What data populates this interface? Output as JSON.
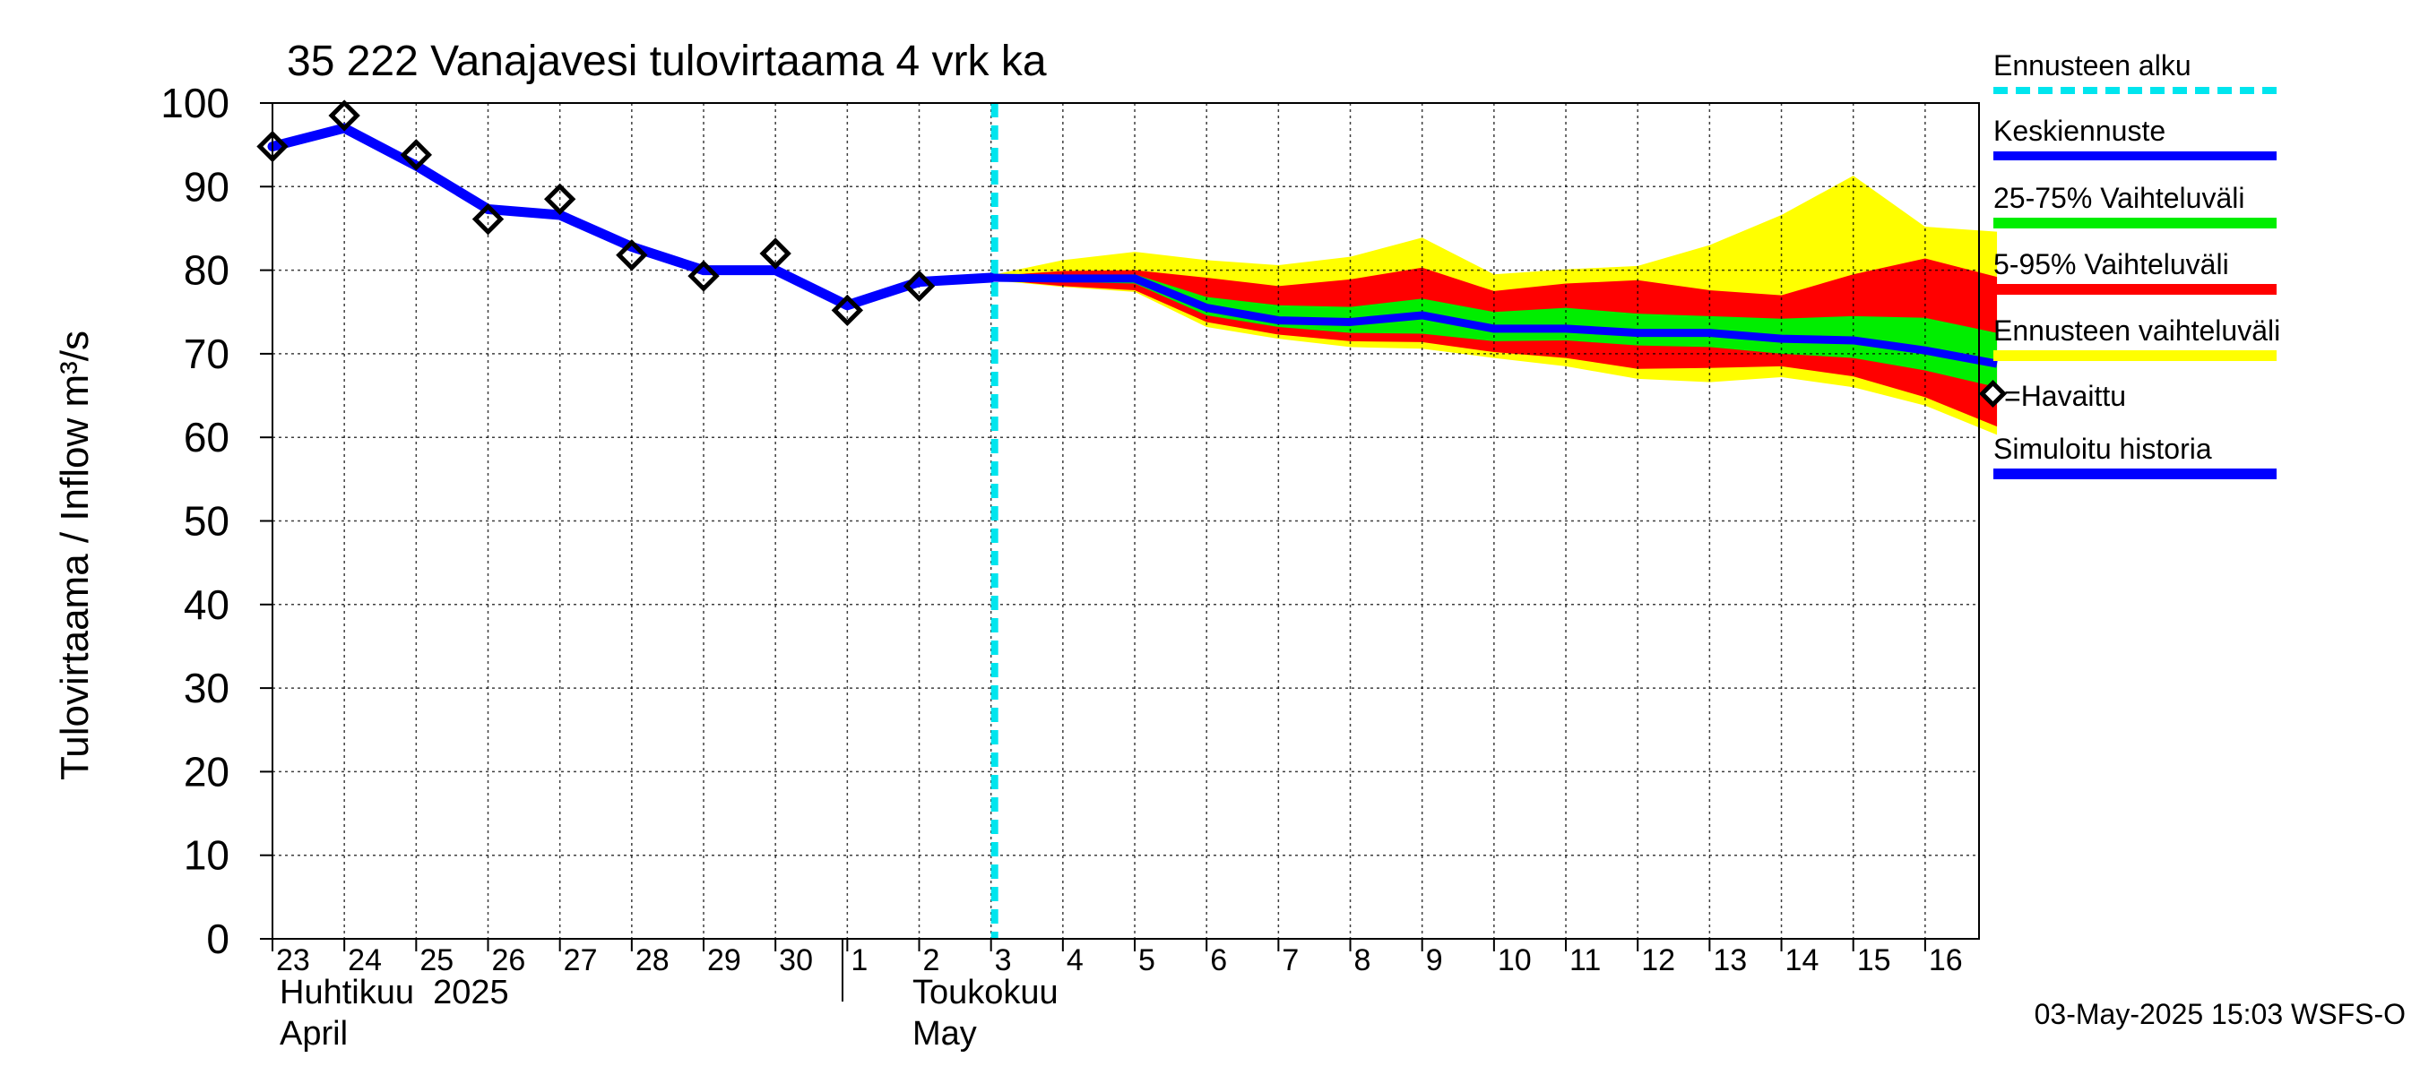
{
  "chart_data": {
    "type": "area",
    "title": "35 222 Vanajavesi tulovirtaama 4 vrk ka",
    "ylabel": "Tulovirtaama / Inflow    m³/s",
    "ylim": [
      0,
      100
    ],
    "yticks": [
      0,
      10,
      20,
      30,
      40,
      50,
      60,
      70,
      80,
      90,
      100
    ],
    "x_labels": [
      "23",
      "24",
      "25",
      "26",
      "27",
      "28",
      "29",
      "30",
      "1",
      "2",
      "3",
      "4",
      "5",
      "6",
      "7",
      "8",
      "9",
      "10",
      "11",
      "12",
      "13",
      "14",
      "15",
      "16"
    ],
    "month_labels": [
      {
        "fi": "Huhtikuu  2025",
        "en": "April",
        "start_index": 0
      },
      {
        "fi": "Toukokuu",
        "en": "May",
        "start_index": 9
      }
    ],
    "forecast_start": 10.05,
    "grid": true,
    "legend_position": "right",
    "legend": {
      "forecast_start": "Ennusteen alku",
      "mean": "Keskiennuste",
      "p25_75": "25-75% Vaihteluväli",
      "p5_95": "5-95% Vaihteluväli",
      "range": "Ennusteen vaihteluväli",
      "observed": "=Havaittu",
      "simulated": "Simuloitu historia"
    },
    "colors": {
      "forecast_start": "#00e5ee",
      "mean": "#0000ff",
      "p25_75": "#00ee00",
      "p5_95": "#ff0000",
      "range": "#ffff00",
      "simulated": "#0000ff",
      "observed": "#000000"
    },
    "observed": {
      "x": [
        0,
        1,
        2,
        3,
        4,
        5,
        6,
        7,
        8,
        9
      ],
      "y": [
        94.8,
        98.5,
        93.8,
        86.1,
        88.5,
        81.8,
        79.3,
        82.0,
        75.2,
        78.1
      ]
    },
    "simulated": {
      "x": [
        0,
        1,
        2,
        3,
        4,
        5,
        6,
        7,
        8,
        9,
        10
      ],
      "y": [
        94.8,
        97.0,
        92.5,
        87.3,
        86.6,
        82.8,
        80.0,
        80.0,
        75.8,
        78.6,
        79.1
      ]
    },
    "forecast": {
      "x": [
        10,
        11,
        12,
        13,
        14,
        15,
        16,
        17,
        18,
        19,
        20,
        21,
        22,
        23,
        24
      ],
      "mean": [
        79.1,
        79.0,
        79.0,
        75.5,
        74.0,
        73.8,
        74.6,
        73.0,
        73.0,
        72.5,
        72.5,
        71.8,
        71.6,
        70.4,
        68.8
      ],
      "p25": [
        79.0,
        78.6,
        78.4,
        74.6,
        73.2,
        72.5,
        72.4,
        71.5,
        71.6,
        71.0,
        70.8,
        70.0,
        69.5,
        68.0,
        66.0
      ],
      "p75": [
        79.1,
        79.2,
        79.5,
        76.8,
        75.8,
        75.6,
        76.6,
        75.0,
        75.5,
        74.8,
        74.5,
        74.2,
        74.5,
        74.3,
        72.5
      ],
      "p5": [
        78.9,
        78.1,
        77.6,
        73.8,
        72.3,
        71.5,
        71.4,
        70.2,
        69.5,
        68.2,
        68.3,
        68.5,
        67.3,
        64.8,
        61.3
      ],
      "p95": [
        79.3,
        79.9,
        80.0,
        79.1,
        78.1,
        78.9,
        80.3,
        77.5,
        78.4,
        78.8,
        77.6,
        77.0,
        79.5,
        81.4,
        79.2
      ],
      "min": [
        78.8,
        78.0,
        77.4,
        73.2,
        71.8,
        70.8,
        70.6,
        69.5,
        68.5,
        67.0,
        66.6,
        67.2,
        66.0,
        63.8,
        60.3
      ],
      "max": [
        79.4,
        81.2,
        82.2,
        81.2,
        80.6,
        81.6,
        83.9,
        79.5,
        80.1,
        80.5,
        83.0,
        86.6,
        91.3,
        85.2,
        84.6
      ]
    }
  },
  "footer": {
    "timestamp": "03-May-2025 15:03 WSFS-O"
  }
}
